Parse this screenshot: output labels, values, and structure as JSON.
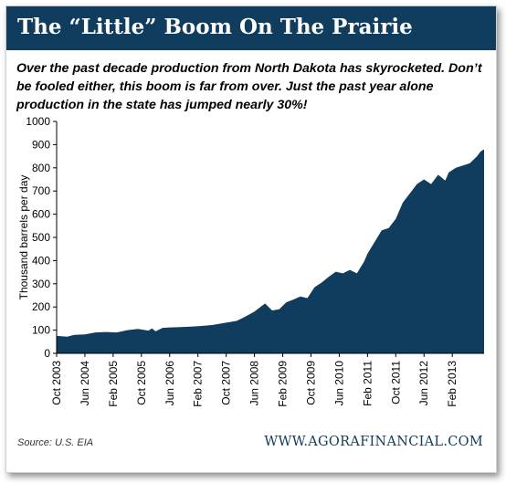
{
  "header": {
    "title": "The “Little” Boom On The Prairie",
    "subtitle": "Over the past decade production from North Dakota has skyrocketed. Don’t be fooled either, this boom is far from over. Just the past year alone production in the state has jumped nearly 30%!"
  },
  "footer": {
    "source": "Source: U.S. EIA",
    "website": "WWW.AGORAFINANCIAL.COM"
  },
  "colors": {
    "banner": "#103c5e",
    "area_fill": "#103c5e"
  },
  "chart_data": {
    "type": "area",
    "ylabel": "Thousand barrels per day",
    "xlabel": "",
    "ylim": [
      0,
      1000
    ],
    "yticks": [
      0,
      100,
      200,
      300,
      400,
      500,
      600,
      700,
      800,
      900,
      1000
    ],
    "grid": false,
    "x_tick_labels": [
      "Oct 2003",
      "Jun 2004",
      "Feb 2005",
      "Oct 2005",
      "Jun 2006",
      "Feb 2007",
      "Oct 2007",
      "Jun 2008",
      "Feb 2009",
      "Oct 2009",
      "Jun 2010",
      "Feb 2011",
      "Oct 2011",
      "Jun 2012",
      "Feb 2013"
    ],
    "x": [
      "2003-10",
      "2004-01",
      "2004-03",
      "2004-06",
      "2004-09",
      "2004-12",
      "2005-03",
      "2005-06",
      "2005-09",
      "2005-12",
      "2006-01",
      "2006-02",
      "2006-04",
      "2006-06",
      "2006-09",
      "2006-12",
      "2007-03",
      "2007-06",
      "2007-09",
      "2007-11",
      "2008-01",
      "2008-03",
      "2008-06",
      "2008-09",
      "2008-11",
      "2009-01",
      "2009-03",
      "2009-05",
      "2009-07",
      "2009-09",
      "2009-11",
      "2010-01",
      "2010-03",
      "2010-05",
      "2010-07",
      "2010-09",
      "2010-11",
      "2010-12",
      "2011-01",
      "2011-02",
      "2011-04",
      "2011-06",
      "2011-08",
      "2011-10",
      "2011-12",
      "2012-02",
      "2012-04",
      "2012-06",
      "2012-08",
      "2012-10",
      "2012-12",
      "2013-01",
      "2013-02",
      "2013-03",
      "2013-05",
      "2013-07",
      "2013-09",
      "2013-10",
      "2013-11"
    ],
    "values": [
      75,
      72,
      80,
      82,
      90,
      92,
      90,
      100,
      105,
      98,
      108,
      95,
      110,
      112,
      113,
      115,
      118,
      122,
      130,
      135,
      140,
      155,
      180,
      215,
      185,
      190,
      220,
      232,
      245,
      238,
      285,
      305,
      330,
      352,
      345,
      360,
      345,
      370,
      395,
      430,
      480,
      530,
      540,
      580,
      650,
      690,
      730,
      750,
      730,
      770,
      745,
      780,
      790,
      800,
      810,
      820,
      850,
      870,
      880
    ]
  }
}
